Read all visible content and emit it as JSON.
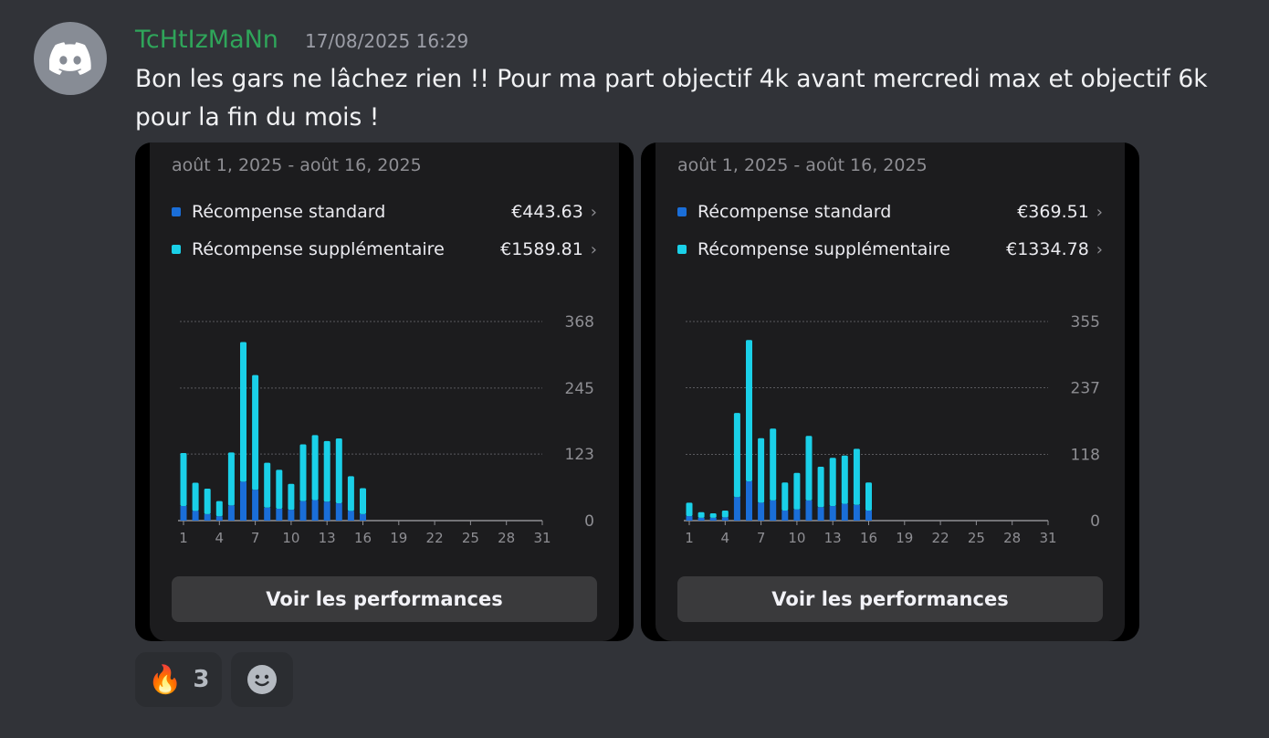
{
  "message": {
    "username": "TcHtIzMaNn",
    "timestamp": "17/08/2025 16:29",
    "text": "Bon les gars ne lâchez rien !! Pour ma part objectif 4k avant mercredi max et objectif 6k pour la fin du mois !",
    "username_color": "#2fa55a"
  },
  "cards": [
    {
      "date_range": "août 1, 2025 - août 16, 2025",
      "legend": [
        {
          "label": "Récompense standard",
          "value": "€443.63",
          "color": "#1a6ed8"
        },
        {
          "label": "Récompense supplémentaire",
          "value": "€1589.81",
          "color": "#1ad0e8"
        }
      ],
      "button_label": "Voir les performances"
    },
    {
      "date_range": "août 1, 2025 - août 16, 2025",
      "legend": [
        {
          "label": "Récompense standard",
          "value": "€369.51",
          "color": "#1a6ed8"
        },
        {
          "label": "Récompense supplémentaire",
          "value": "€1334.78",
          "color": "#1ad0e8"
        }
      ],
      "button_label": "Voir les performances"
    }
  ],
  "chart_data": [
    {
      "type": "bar",
      "stacked": true,
      "categories": [
        "1",
        "2",
        "3",
        "4",
        "5",
        "6",
        "7",
        "8",
        "9",
        "10",
        "11",
        "12",
        "13",
        "14",
        "15",
        "16",
        "17",
        "18",
        "19",
        "20",
        "21",
        "22",
        "23",
        "24",
        "25",
        "26",
        "27",
        "28",
        "29",
        "30",
        "31"
      ],
      "x_tick_labels": [
        "1",
        "4",
        "7",
        "10",
        "13",
        "16",
        "19",
        "22",
        "25",
        "28",
        "31"
      ],
      "y_tick_labels": [
        "368",
        "245",
        "123",
        "0"
      ],
      "ylim": [
        0,
        368
      ],
      "series": [
        {
          "name": "Récompense standard",
          "values": [
            27,
            18,
            12,
            8,
            28,
            72,
            57,
            24,
            22,
            20,
            36,
            38,
            35,
            32,
            18,
            12,
            0,
            0,
            0,
            0,
            0,
            0,
            0,
            0,
            0,
            0,
            0,
            0,
            0,
            0,
            0
          ]
        },
        {
          "name": "Récompense supplémentaire",
          "values": [
            98,
            52,
            47,
            28,
            98,
            258,
            212,
            83,
            72,
            48,
            105,
            120,
            112,
            120,
            64,
            48,
            0,
            0,
            0,
            0,
            0,
            0,
            0,
            0,
            0,
            0,
            0,
            0,
            0,
            0,
            0
          ]
        }
      ],
      "grid": true
    },
    {
      "type": "bar",
      "stacked": true,
      "categories": [
        "1",
        "2",
        "3",
        "4",
        "5",
        "6",
        "7",
        "8",
        "9",
        "10",
        "11",
        "12",
        "13",
        "14",
        "15",
        "16",
        "17",
        "18",
        "19",
        "20",
        "21",
        "22",
        "23",
        "24",
        "25",
        "26",
        "27",
        "28",
        "29",
        "30",
        "31"
      ],
      "x_tick_labels": [
        "1",
        "4",
        "7",
        "10",
        "13",
        "16",
        "19",
        "22",
        "25",
        "28",
        "31"
      ],
      "y_tick_labels": [
        "355",
        "237",
        "118",
        "0"
      ],
      "ylim": [
        0,
        355
      ],
      "series": [
        {
          "name": "Récompense standard",
          "values": [
            8,
            5,
            5,
            6,
            42,
            70,
            32,
            36,
            18,
            20,
            36,
            24,
            26,
            30,
            28,
            18,
            0,
            0,
            0,
            0,
            0,
            0,
            0,
            0,
            0,
            0,
            0,
            0,
            0,
            0,
            0
          ]
        },
        {
          "name": "Récompense supplémentaire",
          "values": [
            24,
            10,
            8,
            12,
            150,
            252,
            115,
            128,
            50,
            65,
            115,
            72,
            86,
            86,
            100,
            50,
            0,
            0,
            0,
            0,
            0,
            0,
            0,
            0,
            0,
            0,
            0,
            0,
            0,
            0,
            0
          ]
        }
      ],
      "grid": true
    }
  ],
  "reactions": [
    {
      "emoji": "🔥",
      "count": "3"
    }
  ],
  "icons": {
    "avatar": "discord-logo-icon",
    "add_reaction": "smiley-add-icon"
  }
}
